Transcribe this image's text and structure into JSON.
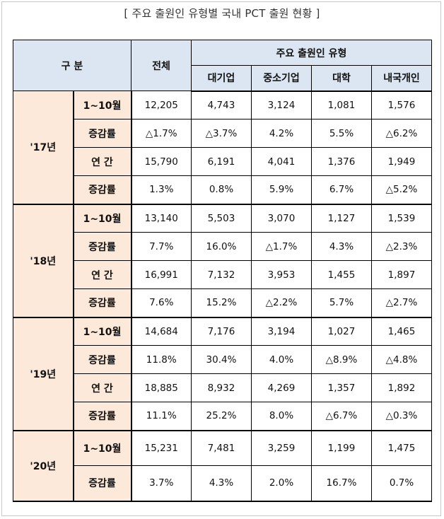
{
  "title": "[ 주요 출원인 유형별 국내 PCT 출원 현황 ]",
  "header": {
    "category": "구 분",
    "total": "전체",
    "group": "주요 출원인 유형",
    "types": [
      "대기업",
      "중소기업",
      "대학",
      "내국개인"
    ]
  },
  "groups": [
    {
      "year": "'17년",
      "rows": [
        {
          "label": "1~10월",
          "values": [
            "12,205",
            "4,743",
            "3,124",
            "1,081",
            "1,576"
          ]
        },
        {
          "label": "증감률",
          "values": [
            "△1.7%",
            "△3.7%",
            "4.2%",
            "5.5%",
            "△6.2%"
          ]
        },
        {
          "label": "연 간",
          "values": [
            "15,790",
            "6,191",
            "4,041",
            "1,376",
            "1,949"
          ]
        },
        {
          "label": "증감률",
          "values": [
            "1.3%",
            "0.8%",
            "5.9%",
            "6.7%",
            "△5.2%"
          ]
        }
      ]
    },
    {
      "year": "'18년",
      "rows": [
        {
          "label": "1~10월",
          "values": [
            "13,140",
            "5,503",
            "3,070",
            "1,127",
            "1,539"
          ]
        },
        {
          "label": "증감률",
          "values": [
            "7.7%",
            "16.0%",
            "△1.7%",
            "4.3%",
            "△2.3%"
          ]
        },
        {
          "label": "연 간",
          "values": [
            "16,991",
            "7,132",
            "3,953",
            "1,455",
            "1,897"
          ]
        },
        {
          "label": "증감률",
          "values": [
            "7.6%",
            "15.2%",
            "△2.2%",
            "5.7%",
            "△2.7%"
          ]
        }
      ]
    },
    {
      "year": "'19년",
      "rows": [
        {
          "label": "1~10월",
          "values": [
            "14,684",
            "7,176",
            "3,194",
            "1,027",
            "1,465"
          ]
        },
        {
          "label": "증감률",
          "values": [
            "11.8%",
            "30.4%",
            "4.0%",
            "△8.9%",
            "△4.8%"
          ]
        },
        {
          "label": "연 간",
          "values": [
            "18,885",
            "8,932",
            "4,269",
            "1,357",
            "1,892"
          ]
        },
        {
          "label": "증감률",
          "values": [
            "11.1%",
            "25.2%",
            "8.0%",
            "△6.7%",
            "△0.3%"
          ]
        }
      ]
    },
    {
      "year": "'20년",
      "rows": [
        {
          "label": "1~10월",
          "values": [
            "15,231",
            "7,481",
            "3,259",
            "1,199",
            "1,475"
          ]
        },
        {
          "label": "증감률",
          "values": [
            "3.7%",
            "4.3%",
            "2.0%",
            "16.7%",
            "0.7%"
          ]
        }
      ]
    }
  ]
}
